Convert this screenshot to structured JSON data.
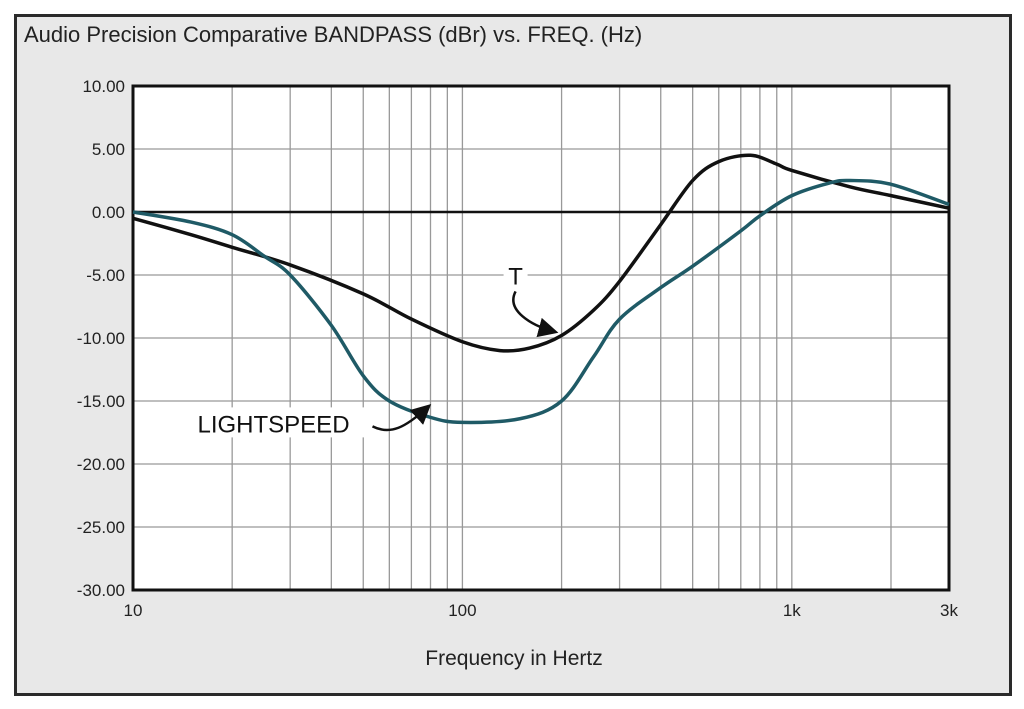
{
  "chart_data": {
    "type": "line",
    "title": "Audio Precision Comparative BANDPASS (dBr) vs. FREQ. (Hz)",
    "xlabel": "Frequency in Hertz",
    "ylabel": "",
    "xscale": "log",
    "xlim": [
      10,
      3000
    ],
    "ylim": [
      -30,
      10
    ],
    "grid": true,
    "x_ticks": [
      {
        "v": 10,
        "label": "10"
      },
      {
        "v": 100,
        "label": "100"
      },
      {
        "v": 1000,
        "label": "1k"
      },
      {
        "v": 3000,
        "label": "3k"
      }
    ],
    "y_ticks": [
      {
        "v": 10,
        "label": "10.00"
      },
      {
        "v": 5,
        "label": "5.00"
      },
      {
        "v": 0,
        "label": "0.00"
      },
      {
        "v": -5,
        "label": "-5.00"
      },
      {
        "v": -10,
        "label": "-10.00"
      },
      {
        "v": -15,
        "label": "-15.00"
      },
      {
        "v": -20,
        "label": "-20.00"
      },
      {
        "v": -25,
        "label": "-25.00"
      },
      {
        "v": -30,
        "label": "-30.00"
      }
    ],
    "series": [
      {
        "name": "T",
        "color": "#111111",
        "x": [
          10,
          15,
          20,
          30,
          50,
          70,
          100,
          130,
          160,
          200,
          250,
          300,
          400,
          500,
          600,
          750,
          900,
          1000,
          1500,
          2000,
          3000
        ],
        "y": [
          -0.5,
          -1.8,
          -2.8,
          -4.2,
          -6.5,
          -8.5,
          -10.3,
          -11.0,
          -10.8,
          -9.8,
          -7.8,
          -5.5,
          -1.0,
          2.5,
          4.0,
          4.5,
          3.8,
          3.3,
          2.0,
          1.3,
          0.3
        ]
      },
      {
        "name": "LIGHTSPEED",
        "color": "#1f5a66",
        "x": [
          10,
          15,
          20,
          25,
          30,
          40,
          50,
          60,
          80,
          100,
          150,
          200,
          250,
          300,
          400,
          500,
          700,
          800,
          1000,
          1300,
          1500,
          2000,
          3000
        ],
        "y": [
          0,
          -0.8,
          -1.8,
          -3.5,
          -5.0,
          -9.0,
          -13.0,
          -15.0,
          -16.3,
          -16.7,
          -16.4,
          -15.0,
          -11.5,
          -8.5,
          -6.0,
          -4.3,
          -1.5,
          -0.3,
          1.3,
          2.3,
          2.5,
          2.2,
          0.6
        ]
      }
    ],
    "annotations": [
      {
        "text": "T",
        "series": "T",
        "at_x": 200
      },
      {
        "text": "LIGHTSPEED",
        "series": "LIGHTSPEED",
        "at_x": 80
      }
    ]
  }
}
